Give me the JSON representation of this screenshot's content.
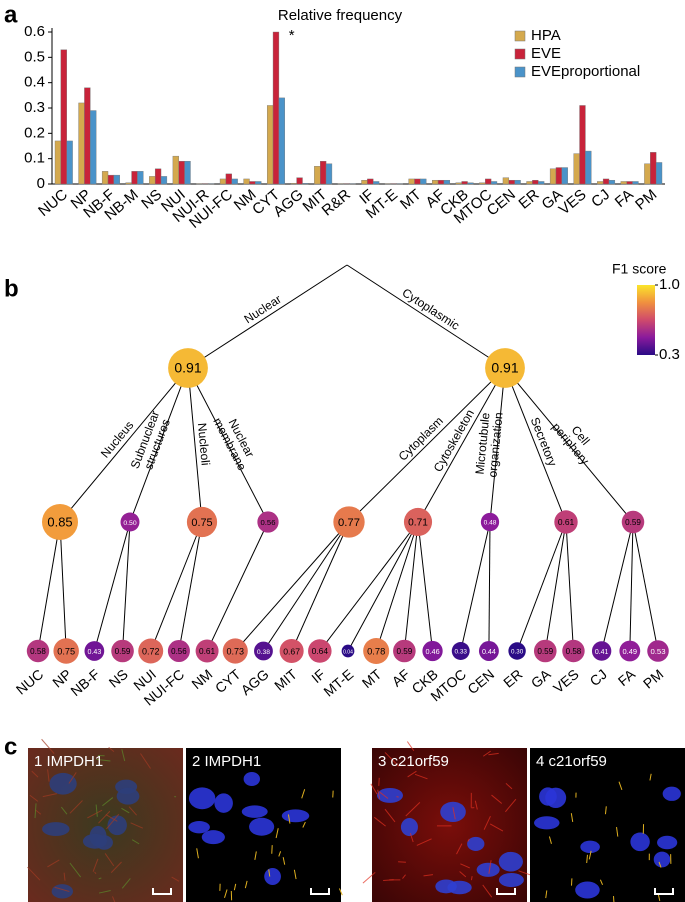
{
  "panel_labels": [
    "a",
    "b",
    "c"
  ],
  "chart_data": [
    {
      "type": "bar",
      "title": "Relative frequency",
      "categories": [
        "NUC",
        "NP",
        "NB-F",
        "NB-M",
        "NS",
        "NUI",
        "NUI-R",
        "NUI-FC",
        "NM",
        "CYT",
        "AGG",
        "MIT",
        "R&R",
        "IF",
        "MT-E",
        "MT",
        "AF",
        "CKB",
        "MTOC",
        "CEN",
        "ER",
        "GA",
        "VES",
        "CJ",
        "FA",
        "PM"
      ],
      "series": [
        {
          "name": "HPA",
          "color": "#d4a94e",
          "values": [
            0.17,
            0.32,
            0.05,
            0.005,
            0.03,
            0.11,
            0.002,
            0.02,
            0.02,
            0.31,
            0.003,
            0.07,
            0.002,
            0.015,
            0.002,
            0.02,
            0.015,
            0.005,
            0.005,
            0.025,
            0.01,
            0.06,
            0.12,
            0.01,
            0.01,
            0.08
          ]
        },
        {
          "name": "EVE",
          "color": "#c8233a",
          "values": [
            0.53,
            0.38,
            0.035,
            0.05,
            0.06,
            0.09,
            0.002,
            0.04,
            0.01,
            0.6,
            0.025,
            0.09,
            0.002,
            0.02,
            0.002,
            0.02,
            0.015,
            0.01,
            0.02,
            0.015,
            0.015,
            0.065,
            0.31,
            0.02,
            0.01,
            0.125
          ]
        },
        {
          "name": "EVEproportional",
          "color": "#4a93c9",
          "values": [
            0.17,
            0.29,
            0.035,
            0.05,
            0.03,
            0.09,
            0.002,
            0.02,
            0.01,
            0.34,
            0.003,
            0.08,
            0.002,
            0.01,
            0.002,
            0.02,
            0.015,
            0.005,
            0.01,
            0.015,
            0.01,
            0.065,
            0.13,
            0.015,
            0.01,
            0.085
          ]
        }
      ],
      "ylim": [
        0,
        0.6
      ],
      "yticks": [
        0,
        0.1,
        0.2,
        0.3,
        0.4,
        0.5,
        0.6
      ],
      "legend": "upper right",
      "annotations": [
        {
          "text": "*",
          "category": "CYT"
        }
      ]
    },
    {
      "type": "tree",
      "title": "F1 score",
      "colormap": [
        "#2a0b86",
        "#8a1a9c",
        "#cf4a6c",
        "#f0903f",
        "#fbe52a"
      ],
      "colorbar": {
        "lim": [
          0.3,
          1
        ],
        "ticks": [
          {
            "value": 1,
            "label": "1.0"
          },
          {
            "value": 0.3,
            "label": "0.3"
          }
        ]
      },
      "nodes": [
        {
          "parent": null
        },
        {
          "name": "Nuclear",
          "score": 0.91,
          "parent": 0
        },
        {
          "name": "Cytoplasmic",
          "score": 0.91,
          "parent": 0
        },
        {
          "name": "Nucleus",
          "score": 0.85,
          "parent": 1
        },
        {
          "name": "Subnuclear structures",
          "score": 0.5,
          "score_label": "0.50",
          "parent": 1
        },
        {
          "name": "Nucleoli",
          "score": 0.75,
          "parent": 1
        },
        {
          "name": "Nuclear membrane",
          "score": 0.56,
          "parent": 1
        },
        {
          "name": "Cytoplasm",
          "score": 0.77,
          "parent": 2
        },
        {
          "name": "Cytoskeleton",
          "score": 0.71,
          "parent": 2
        },
        {
          "name": "Microtubule organization",
          "score": 0.48,
          "parent": 2
        },
        {
          "name": "Secretory",
          "score": 0.61,
          "parent": 2
        },
        {
          "name": "Cell periphery",
          "score": 0.59,
          "parent": 2
        },
        {
          "name": "NUC",
          "score": 0.58,
          "parent": 3
        },
        {
          "name": "NP",
          "score": 0.75,
          "parent": 3
        },
        {
          "name": "NB-F",
          "score": 0.43,
          "parent": 4
        },
        {
          "name": "NS",
          "score": 0.59,
          "parent": 4
        },
        {
          "name": "NUI",
          "score": 0.72,
          "parent": 5
        },
        {
          "name": "NUI-FC",
          "score": 0.56,
          "parent": 5
        },
        {
          "name": "NM",
          "score": 0.61,
          "parent": 6
        },
        {
          "name": "CYT",
          "score": 0.73,
          "parent": 7
        },
        {
          "name": "AGG",
          "score": 0.38,
          "parent": 7
        },
        {
          "name": "MIT",
          "score": 0.67,
          "parent": 7
        },
        {
          "name": "IF",
          "score": 0.64,
          "parent": 8
        },
        {
          "name": "MT-E",
          "score": 0.04,
          "parent": 8
        },
        {
          "name": "MT",
          "score": 0.78,
          "parent": 8
        },
        {
          "name": "AF",
          "score": 0.59,
          "parent": 8
        },
        {
          "name": "CKB",
          "score": 0.46,
          "parent": 8
        },
        {
          "name": "MTOC",
          "score": 0.33,
          "parent": 9
        },
        {
          "name": "CEN",
          "score": 0.44,
          "parent": 9
        },
        {
          "name": "ER",
          "score": 0.3,
          "score_label": "0.30",
          "parent": 10
        },
        {
          "name": "GA",
          "score": 0.59,
          "parent": 10
        },
        {
          "name": "VES",
          "score": 0.58,
          "parent": 10
        },
        {
          "name": "CJ",
          "score": 0.41,
          "parent": 11
        },
        {
          "name": "FA",
          "score": 0.49,
          "parent": 11
        },
        {
          "name": "PM",
          "score": 0.53,
          "parent": 11
        }
      ]
    }
  ],
  "images": [
    {
      "label": "1 IMPDH1"
    },
    {
      "label": "2 IMPDH1"
    },
    {
      "label": "3 c21orf59"
    },
    {
      "label": "4 c21orf59"
    }
  ]
}
